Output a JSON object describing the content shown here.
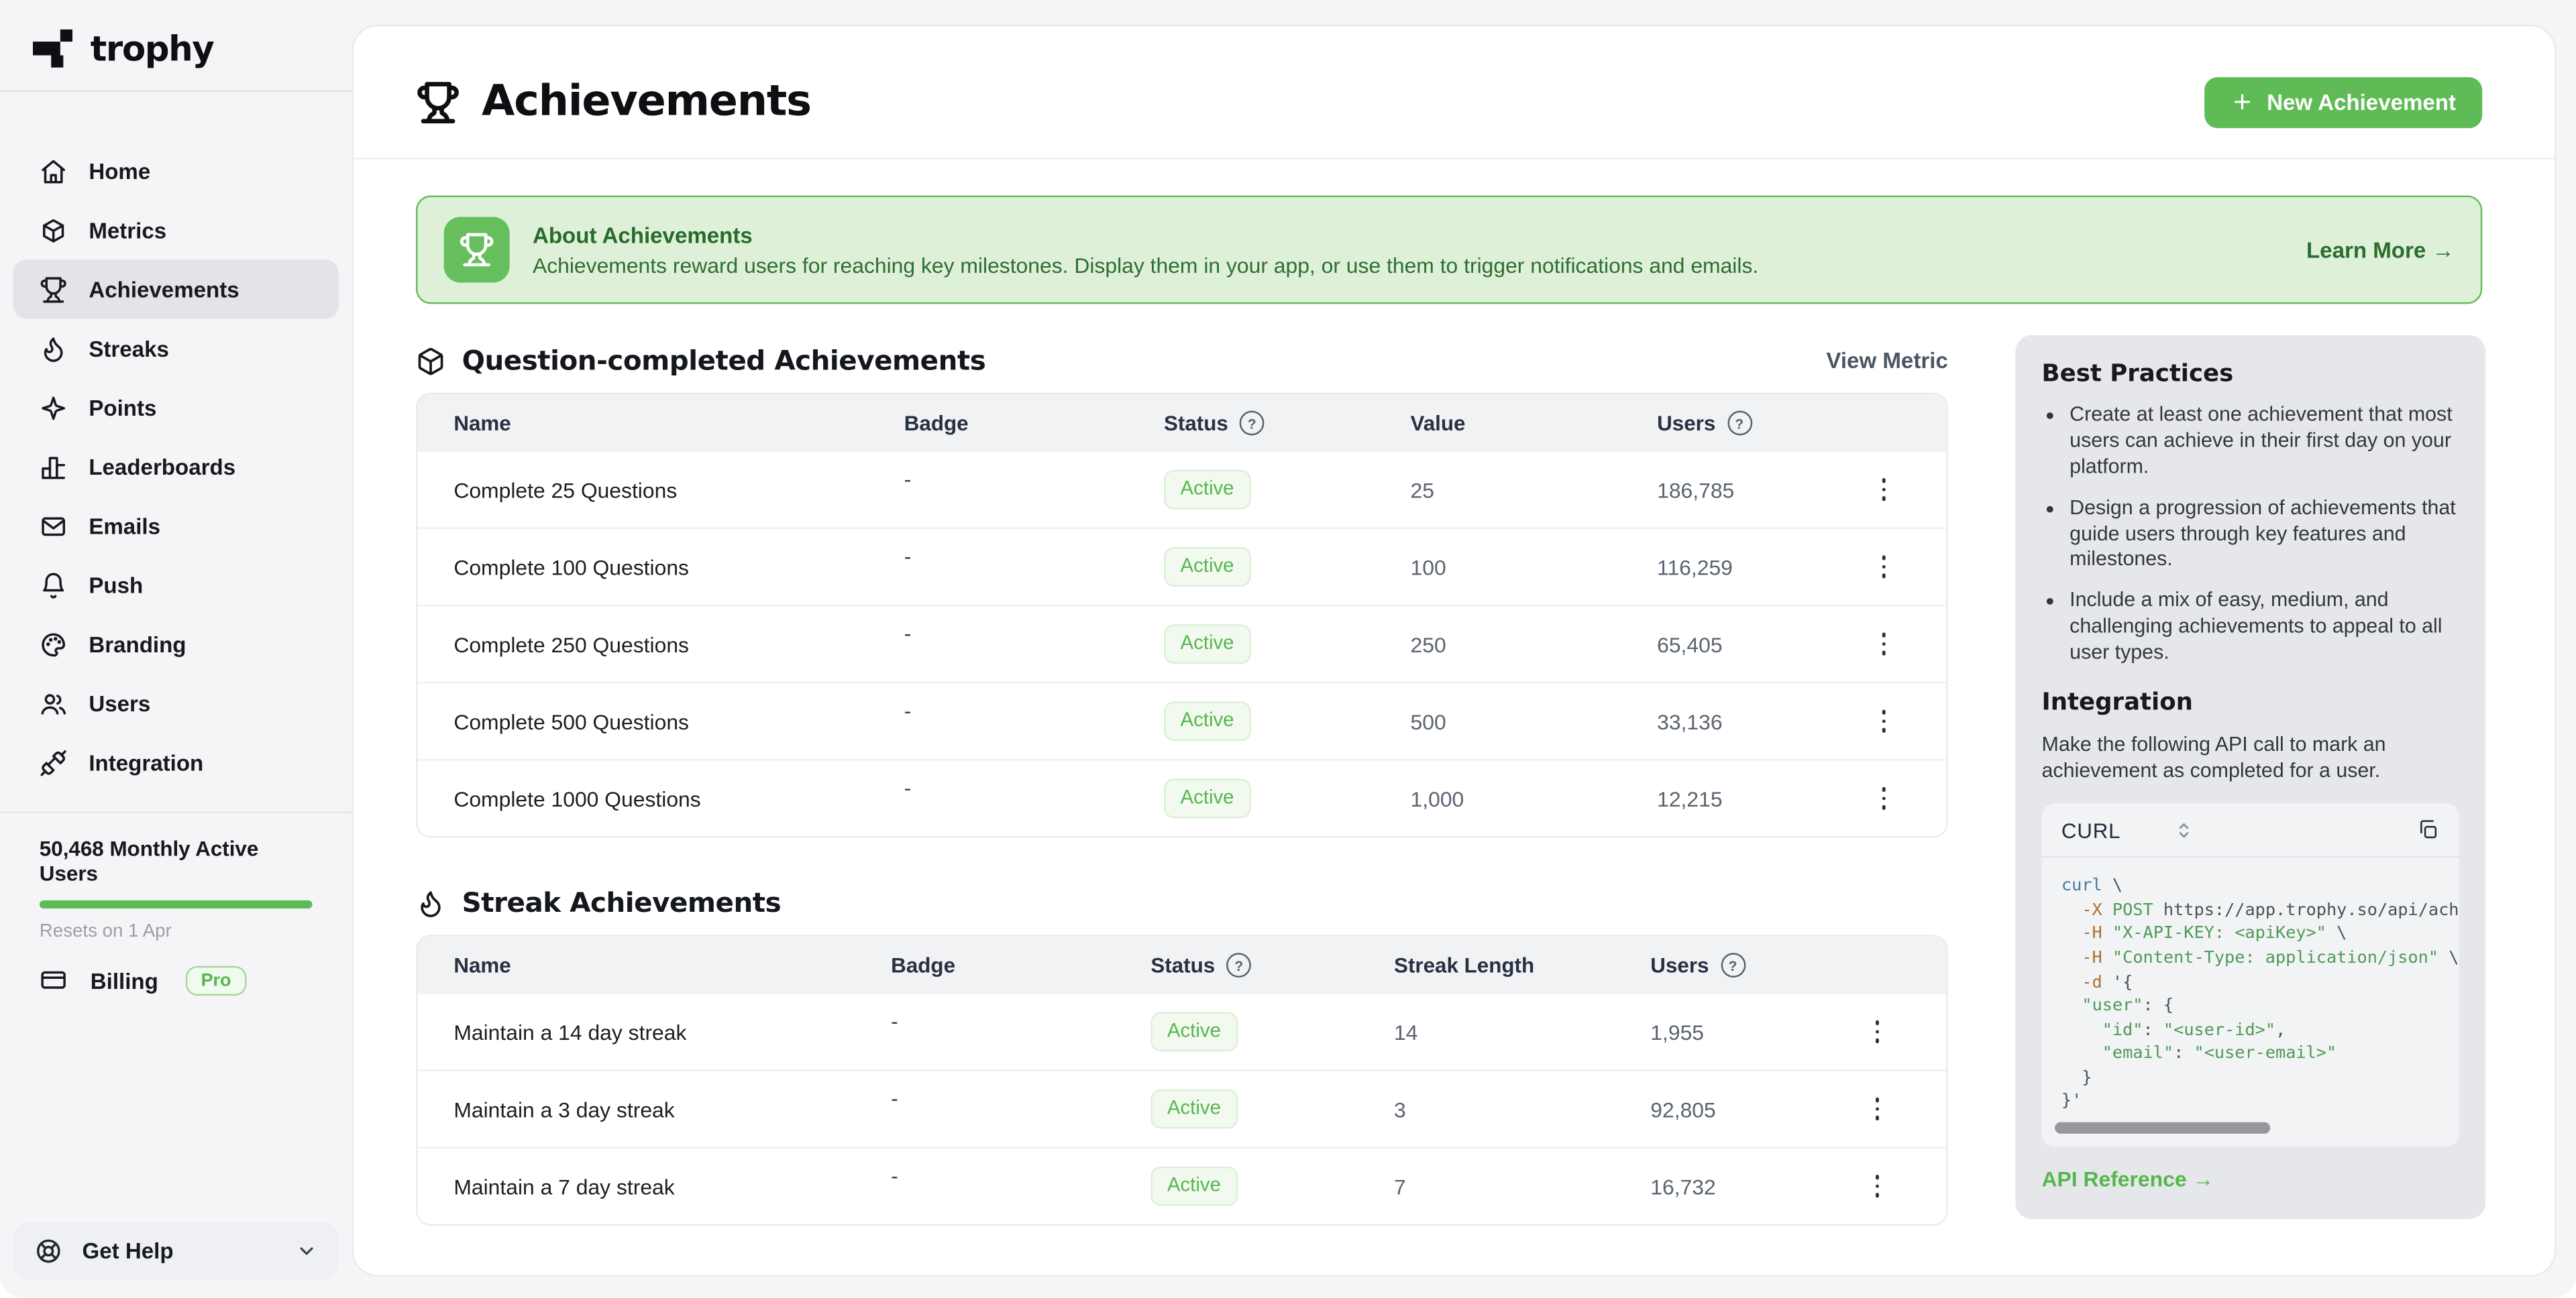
{
  "brand": {
    "name": "trophy"
  },
  "sidebar": {
    "items": [
      {
        "label": "Home",
        "icon": "home"
      },
      {
        "label": "Metrics",
        "icon": "cube"
      },
      {
        "label": "Achievements",
        "icon": "trophy",
        "active": true
      },
      {
        "label": "Streaks",
        "icon": "flame"
      },
      {
        "label": "Points",
        "icon": "sparkle"
      },
      {
        "label": "Leaderboards",
        "icon": "bar-chart"
      },
      {
        "label": "Emails",
        "icon": "mail"
      },
      {
        "label": "Push",
        "icon": "bell"
      },
      {
        "label": "Branding",
        "icon": "palette"
      },
      {
        "label": "Users",
        "icon": "users"
      },
      {
        "label": "Integration",
        "icon": "plug"
      }
    ],
    "usage": {
      "label": "50,468 Monthly Active Users",
      "resets": "Resets on 1 Apr",
      "progress_percent": 100
    },
    "billing": {
      "label": "Billing",
      "badge": "Pro",
      "icon": "credit-card"
    },
    "help": {
      "label": "Get Help",
      "icon": "life-buoy"
    }
  },
  "header": {
    "title": "Achievements",
    "new_button": "New Achievement"
  },
  "banner": {
    "title": "About Achievements",
    "description": "Achievements reward users for reaching key milestones. Display them in your app, or use them to trigger notifications and emails.",
    "link": "Learn More →"
  },
  "sections": [
    {
      "title": "Question-completed Achievements",
      "icon": "package",
      "action": "View Metric",
      "table": {
        "columns": [
          {
            "label": "Name"
          },
          {
            "label": "Badge"
          },
          {
            "label": "Status",
            "help": true
          },
          {
            "label": "Value"
          },
          {
            "label": "Users",
            "help": true
          }
        ],
        "rows": [
          [
            "Complete 25 Questions",
            "-",
            "Active",
            "25",
            "186,785"
          ],
          [
            "Complete 100 Questions",
            "-",
            "Active",
            "100",
            "116,259"
          ],
          [
            "Complete 250 Questions",
            "-",
            "Active",
            "250",
            "65,405"
          ],
          [
            "Complete 500 Questions",
            "-",
            "Active",
            "500",
            "33,136"
          ],
          [
            "Complete 1000 Questions",
            "-",
            "Active",
            "1,000",
            "12,215"
          ]
        ]
      }
    },
    {
      "title": "Streak Achievements",
      "icon": "flame",
      "action": null,
      "table": {
        "columns": [
          {
            "label": "Name"
          },
          {
            "label": "Badge"
          },
          {
            "label": "Status",
            "help": true
          },
          {
            "label": "Streak Length"
          },
          {
            "label": "Users",
            "help": true
          }
        ],
        "rows": [
          [
            "Maintain a 14 day streak",
            "-",
            "Active",
            "14",
            "1,955"
          ],
          [
            "Maintain a 3 day streak",
            "-",
            "Active",
            "3",
            "92,805"
          ],
          [
            "Maintain a 7 day streak",
            "-",
            "Active",
            "7",
            "16,732"
          ]
        ]
      }
    }
  ],
  "aside": {
    "best_practices": {
      "title": "Best Practices",
      "bullets": [
        "Create at least one achievement that most users can achieve in their first day on your platform.",
        "Design a progression of achievements that guide users through key features and milestones.",
        "Include a mix of easy, medium, and challenging achievements to appeal to all user types."
      ]
    },
    "integration": {
      "title": "Integration",
      "description": "Make the following API call to mark an achievement as completed for a user.",
      "code": {
        "language": "CURL",
        "lines": [
          "curl \\",
          "  -X POST https://app.trophy.so/api/achie",
          "  -H \"X-API-KEY: <apiKey>\" \\",
          "  -H \"Content-Type: application/json\" \\",
          "  -d '{",
          "  \"user\": {",
          "    \"id\": \"<user-id>\",",
          "    \"email\": \"<user-email>\"",
          "  }",
          "}'"
        ]
      },
      "link": "API Reference →"
    }
  },
  "colors": {
    "accent_green": "#5fbb55",
    "banner_bg": "#def0d8",
    "banner_text": "#2b6c2f",
    "status_badge_text": "#57b64e",
    "sidebar_bg": "#f5f5f7",
    "panel_bg": "#e6e7ea"
  }
}
